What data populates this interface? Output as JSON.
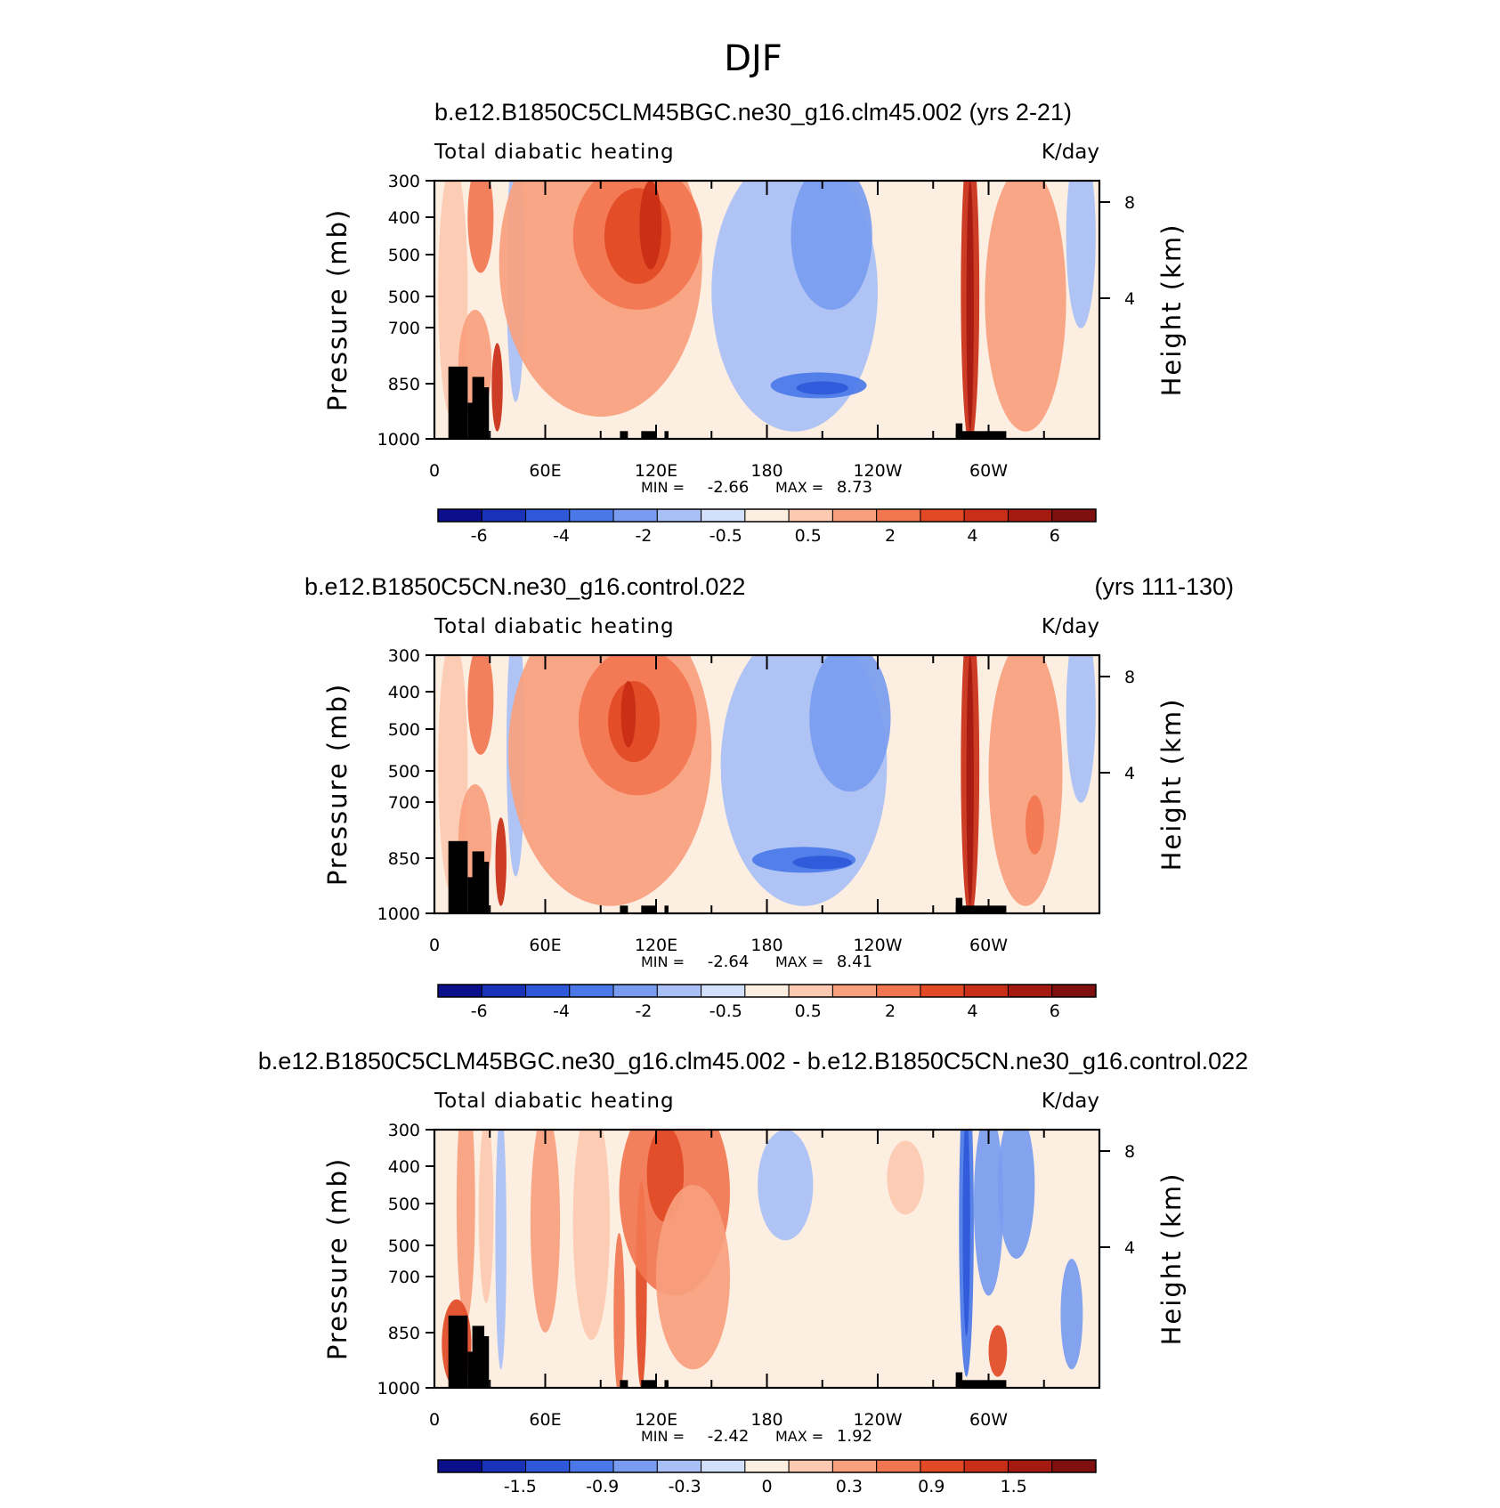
{
  "figure": {
    "title": "DJF"
  },
  "chart_data": [
    {
      "type": "heatmap",
      "panel_title": "b.e12.B1850C5CLM45BGC.ne30_g16.clm45.002 (yrs 2-21)",
      "panel_title_right": "",
      "left_string": "Total diabatic heating",
      "right_string": "K/day",
      "ylabel": "Pressure (mb)",
      "ylabel_right": "Height (km)",
      "x_ticks": [
        "0",
        "60E",
        "120E",
        "180",
        "120W",
        "60W"
      ],
      "y_ticks": [
        "300",
        "400",
        "500",
        "500",
        "700",
        "850",
        "1000"
      ],
      "y_ticks_right": [
        "8",
        "4"
      ],
      "min_label": "MIN =",
      "min": "-2.66",
      "max_label": "MAX =",
      "max": "8.73",
      "colorbar_labels": [
        "-6",
        "-4",
        "-2",
        "-0.5",
        "0.5",
        "2",
        "4",
        "6"
      ],
      "colorbar_colors": [
        "#0b0f8c",
        "#1932b8",
        "#2e58d8",
        "#4a78e8",
        "#7a9cf0",
        "#a8c0f5",
        "#d2e0fb",
        "#fdeee2",
        "#fccab0",
        "#f8a07e",
        "#f27650",
        "#e24a26",
        "#c92e16",
        "#a41910",
        "#800f0f"
      ],
      "blobs": [
        {
          "lon": 10,
          "p": 600,
          "rx": 8,
          "rp": 350,
          "c": 8
        },
        {
          "lon": 25,
          "p": 400,
          "rx": 7,
          "rp": 150,
          "c": 10
        },
        {
          "lon": 22,
          "p": 800,
          "rx": 9,
          "rp": 150,
          "c": 9
        },
        {
          "lon": 34,
          "p": 860,
          "rx": 3,
          "rp": 120,
          "c": 12
        },
        {
          "lon": 44,
          "p": 550,
          "rx": 5,
          "rp": 350,
          "c": 5
        },
        {
          "lon": 90,
          "p": 520,
          "rx": 55,
          "rp": 420,
          "c": 9
        },
        {
          "lon": 110,
          "p": 450,
          "rx": 35,
          "rp": 200,
          "c": 10
        },
        {
          "lon": 110,
          "p": 450,
          "rx": 18,
          "rp": 130,
          "c": 11
        },
        {
          "lon": 117,
          "p": 420,
          "rx": 6,
          "rp": 120,
          "c": 12
        },
        {
          "lon": 195,
          "p": 600,
          "rx": 45,
          "rp": 380,
          "c": 5
        },
        {
          "lon": 215,
          "p": 450,
          "rx": 22,
          "rp": 200,
          "c": 4
        },
        {
          "lon": 208,
          "p": 855,
          "rx": 26,
          "rp": 35,
          "c": 3
        },
        {
          "lon": 210,
          "p": 862,
          "rx": 14,
          "rp": 18,
          "c": 2
        },
        {
          "lon": 290,
          "p": 600,
          "rx": 5,
          "rp": 420,
          "c": 12
        },
        {
          "lon": 290,
          "p": 640,
          "rx": 2,
          "rp": 340,
          "c": 13
        },
        {
          "lon": 320,
          "p": 620,
          "rx": 22,
          "rp": 360,
          "c": 9
        },
        {
          "lon": 350,
          "p": 450,
          "rx": 8,
          "rp": 250,
          "c": 5
        }
      ]
    },
    {
      "type": "heatmap",
      "panel_title": "b.e12.B1850C5CN.ne30_g16.control.022",
      "panel_title_right": "(yrs 111-130)",
      "left_string": "Total diabatic heating",
      "right_string": "K/day",
      "ylabel": "Pressure (mb)",
      "ylabel_right": "Height (km)",
      "x_ticks": [
        "0",
        "60E",
        "120E",
        "180",
        "120W",
        "60W"
      ],
      "y_ticks": [
        "300",
        "400",
        "500",
        "500",
        "700",
        "850",
        "1000"
      ],
      "y_ticks_right": [
        "8",
        "4"
      ],
      "min_label": "MIN =",
      "min": "-2.64",
      "max_label": "MAX =",
      "max": "8.41",
      "colorbar_labels": [
        "-6",
        "-4",
        "-2",
        "-0.5",
        "0.5",
        "2",
        "4",
        "6"
      ],
      "colorbar_colors": [
        "#0b0f8c",
        "#1932b8",
        "#2e58d8",
        "#4a78e8",
        "#7a9cf0",
        "#a8c0f5",
        "#d2e0fb",
        "#fdeee2",
        "#fccab0",
        "#f8a07e",
        "#f27650",
        "#e24a26",
        "#c92e16",
        "#a41910",
        "#800f0f"
      ],
      "blobs": [
        {
          "lon": 10,
          "p": 600,
          "rx": 8,
          "rp": 350,
          "c": 8
        },
        {
          "lon": 25,
          "p": 420,
          "rx": 7,
          "rp": 150,
          "c": 10
        },
        {
          "lon": 22,
          "p": 800,
          "rx": 9,
          "rp": 150,
          "c": 9
        },
        {
          "lon": 36,
          "p": 860,
          "rx": 3,
          "rp": 120,
          "c": 12
        },
        {
          "lon": 44,
          "p": 550,
          "rx": 5,
          "rp": 350,
          "c": 5
        },
        {
          "lon": 95,
          "p": 560,
          "rx": 55,
          "rp": 420,
          "c": 9
        },
        {
          "lon": 110,
          "p": 480,
          "rx": 32,
          "rp": 200,
          "c": 10
        },
        {
          "lon": 108,
          "p": 480,
          "rx": 14,
          "rp": 110,
          "c": 11
        },
        {
          "lon": 105,
          "p": 460,
          "rx": 4,
          "rp": 90,
          "c": 12
        },
        {
          "lon": 200,
          "p": 600,
          "rx": 45,
          "rp": 380,
          "c": 5
        },
        {
          "lon": 225,
          "p": 470,
          "rx": 22,
          "rp": 200,
          "c": 4
        },
        {
          "lon": 200,
          "p": 855,
          "rx": 28,
          "rp": 35,
          "c": 3
        },
        {
          "lon": 210,
          "p": 862,
          "rx": 16,
          "rp": 18,
          "c": 2
        },
        {
          "lon": 290,
          "p": 600,
          "rx": 5,
          "rp": 420,
          "c": 12
        },
        {
          "lon": 290,
          "p": 640,
          "rx": 2,
          "rp": 340,
          "c": 13
        },
        {
          "lon": 320,
          "p": 620,
          "rx": 20,
          "rp": 360,
          "c": 9
        },
        {
          "lon": 325,
          "p": 760,
          "rx": 5,
          "rp": 80,
          "c": 10
        },
        {
          "lon": 350,
          "p": 450,
          "rx": 8,
          "rp": 250,
          "c": 5
        }
      ]
    },
    {
      "type": "heatmap",
      "panel_title": "b.e12.B1850C5CLM45BGC.ne30_g16.clm45.002 - b.e12.B1850C5CN.ne30_g16.control.022",
      "panel_title_right": "",
      "left_string": "Total diabatic heating",
      "right_string": "K/day",
      "ylabel": "Pressure (mb)",
      "ylabel_right": "Height (km)",
      "x_ticks": [
        "0",
        "60E",
        "120E",
        "180",
        "120W",
        "60W"
      ],
      "y_ticks": [
        "300",
        "400",
        "500",
        "500",
        "700",
        "850",
        "1000"
      ],
      "y_ticks_right": [
        "8",
        "4"
      ],
      "min_label": "MIN =",
      "min": "-2.42",
      "max_label": "MAX =",
      "max": "1.92",
      "colorbar_labels": [
        "-1.5",
        "-0.9",
        "-0.3",
        "0",
        "0.3",
        "0.9",
        "1.5"
      ],
      "colorbar_colors": [
        "#0b0f8c",
        "#1932b8",
        "#2e58d8",
        "#4a78e8",
        "#7a9cf0",
        "#a8c0f5",
        "#d2e0fb",
        "#fdeee2",
        "#fccab0",
        "#f8a07e",
        "#f27650",
        "#e24a26",
        "#c92e16",
        "#a41910",
        "#800f0f"
      ],
      "blobs": [
        {
          "lon": 17,
          "p": 500,
          "rx": 5,
          "rp": 320,
          "c": 9
        },
        {
          "lon": 12,
          "p": 880,
          "rx": 8,
          "rp": 120,
          "c": 11
        },
        {
          "lon": 28,
          "p": 520,
          "rx": 4,
          "rp": 250,
          "c": 8
        },
        {
          "lon": 36,
          "p": 600,
          "rx": 3,
          "rp": 350,
          "c": 5
        },
        {
          "lon": 60,
          "p": 550,
          "rx": 8,
          "rp": 300,
          "c": 9
        },
        {
          "lon": 85,
          "p": 550,
          "rx": 10,
          "rp": 320,
          "c": 8
        },
        {
          "lon": 100,
          "p": 800,
          "rx": 3,
          "rp": 220,
          "c": 10
        },
        {
          "lon": 112,
          "p": 720,
          "rx": 3,
          "rp": 280,
          "c": 11
        },
        {
          "lon": 130,
          "p": 470,
          "rx": 30,
          "rp": 280,
          "c": 10
        },
        {
          "lon": 125,
          "p": 420,
          "rx": 10,
          "rp": 130,
          "c": 11
        },
        {
          "lon": 140,
          "p": 700,
          "rx": 20,
          "rp": 250,
          "c": 9
        },
        {
          "lon": 190,
          "p": 450,
          "rx": 15,
          "rp": 150,
          "c": 5
        },
        {
          "lon": 255,
          "p": 430,
          "rx": 10,
          "rp": 100,
          "c": 8
        },
        {
          "lon": 288,
          "p": 550,
          "rx": 4,
          "rp": 420,
          "c": 3
        },
        {
          "lon": 288,
          "p": 560,
          "rx": 2,
          "rp": 300,
          "c": 2
        },
        {
          "lon": 300,
          "p": 500,
          "rx": 8,
          "rp": 250,
          "c": 4
        },
        {
          "lon": 315,
          "p": 450,
          "rx": 10,
          "rp": 200,
          "c": 4
        },
        {
          "lon": 305,
          "p": 900,
          "rx": 5,
          "rp": 70,
          "c": 11
        },
        {
          "lon": 345,
          "p": 800,
          "rx": 6,
          "rp": 150,
          "c": 4
        }
      ]
    }
  ]
}
